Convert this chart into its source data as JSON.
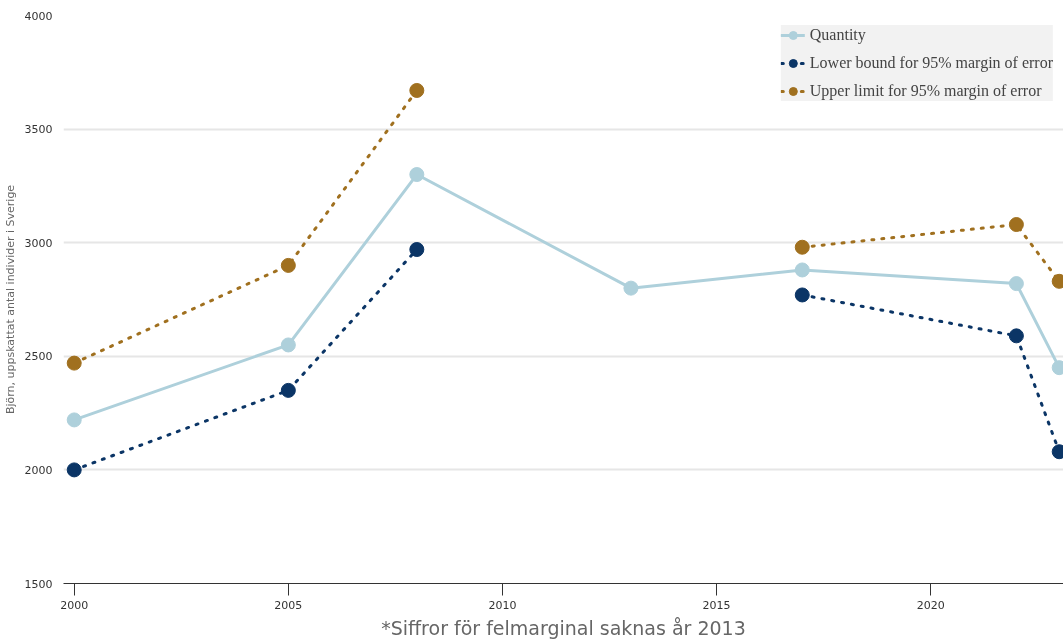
{
  "chart_data": {
    "type": "line",
    "xlabel": "*Siffror för felmarginal saknas år 2013",
    "ylabel": "Björn, uppskattat antal individer i Sverige",
    "x": [
      2000,
      2005,
      2008,
      2013,
      2017,
      2022,
      2023
    ],
    "series": [
      {
        "name": "Quantity",
        "color": "#aed0db",
        "line_style": "solid",
        "values": [
          2220,
          2550,
          3300,
          2800,
          2880,
          2820,
          2450
        ]
      },
      {
        "name": "Lower bound for 95% margin of error",
        "color": "#0b3566",
        "line_style": "dotted",
        "values": [
          2000,
          2350,
          2970,
          null,
          2770,
          2590,
          2080
        ]
      },
      {
        "name": "Upper limit for 95% margin of error",
        "color": "#a0701f",
        "line_style": "dotted",
        "values": [
          2470,
          2900,
          3670,
          null,
          2980,
          3080,
          2830
        ]
      }
    ],
    "xlim": [
      1999.75,
      2023.1
    ],
    "xticks": [
      2000,
      2005,
      2010,
      2015,
      2020
    ],
    "ylim": [
      1500,
      4000
    ],
    "yticks": [
      1500,
      2000,
      2500,
      3000,
      3500,
      4000
    ],
    "grid": "y",
    "legend": "top right",
    "marker": "circle"
  }
}
